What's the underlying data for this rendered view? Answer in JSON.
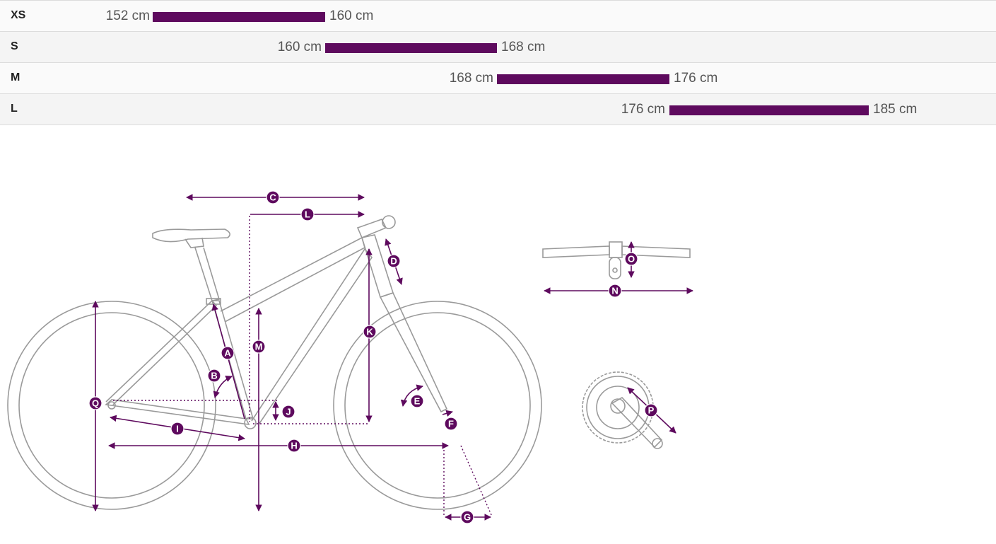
{
  "size_table": {
    "rows": [
      {
        "size": "XS",
        "min": "152 cm",
        "max": "160 cm"
      },
      {
        "size": "S",
        "min": "160 cm",
        "max": "168 cm"
      },
      {
        "size": "M",
        "min": "168 cm",
        "max": "176 cm"
      },
      {
        "size": "L",
        "min": "176 cm",
        "max": "185 cm"
      }
    ]
  },
  "geometry_labels": {
    "A": "A",
    "B": "B",
    "C": "C",
    "D": "D",
    "E": "E",
    "F": "F",
    "G": "G",
    "H": "H",
    "I": "I",
    "J": "J",
    "K": "K",
    "L": "L",
    "M": "M",
    "N": "N",
    "O": "O",
    "P": "P",
    "Q": "Q"
  },
  "colors": {
    "accent": "#5e0a5e",
    "frame_stroke": "#9a9a9a",
    "row_light": "#fafafa",
    "row_dark": "#f4f4f4"
  }
}
